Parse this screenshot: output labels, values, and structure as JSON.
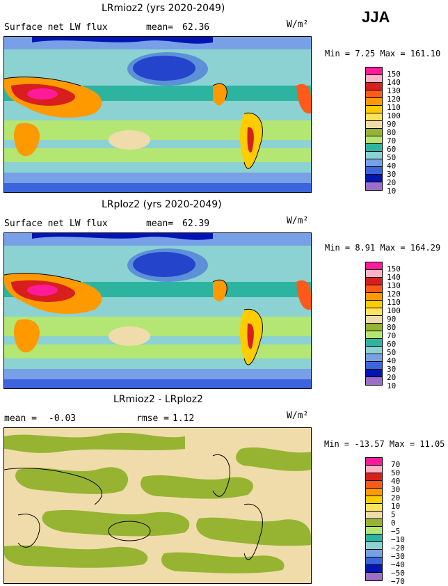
{
  "season": "JJA",
  "panels": [
    {
      "title": "LRmioz2 (yrs 2020-2049)",
      "field": "Surface net LW flux",
      "mean_label": "mean=",
      "mean_value": "62.36",
      "units": "W/m²",
      "min_max": "Min =    7.25 Max = 161.10",
      "colorbar_labels": [
        "150",
        "140",
        "130",
        "120",
        "110",
        "100",
        "90",
        "80",
        "70",
        "60",
        "50",
        "40",
        "30",
        "20",
        "10"
      ]
    },
    {
      "title": "LRploz2 (yrs 2020-2049)",
      "field": "Surface net LW flux",
      "mean_label": "mean=",
      "mean_value": "62.39",
      "units": "W/m²",
      "min_max": "Min =    8.91 Max = 164.29",
      "colorbar_labels": [
        "150",
        "140",
        "130",
        "120",
        "110",
        "100",
        "90",
        "80",
        "70",
        "60",
        "50",
        "40",
        "30",
        "20",
        "10"
      ]
    },
    {
      "title": "LRmioz2 - LRploz2",
      "mean_label": "mean =",
      "mean_value": "-0.03",
      "rmse_label": "rmse =",
      "rmse_value": "1.12",
      "units": "W/m²",
      "min_max": "Min = -13.57 Max =  11.05",
      "colorbar_labels": [
        "70",
        "50",
        "40",
        "30",
        "20",
        "10",
        "5",
        "0",
        "−5",
        "−10",
        "−20",
        "−30",
        "−40",
        "−50",
        "−70"
      ]
    }
  ],
  "colors": {
    "scale": [
      "#ff1a9a",
      "#ffb3c6",
      "#d91e1e",
      "#ff5a1a",
      "#ff9900",
      "#ffcc00",
      "#ffe45a",
      "#f0dcaa",
      "#96b432",
      "#b4e673",
      "#2db4a0",
      "#8cd2d2",
      "#78a0e6",
      "#3c64dc",
      "#0014b4",
      "#9b6ec8"
    ],
    "ocean": "#2db4a0",
    "diff_bg": "#f0dcaa",
    "diff_green": "#96b432"
  }
}
